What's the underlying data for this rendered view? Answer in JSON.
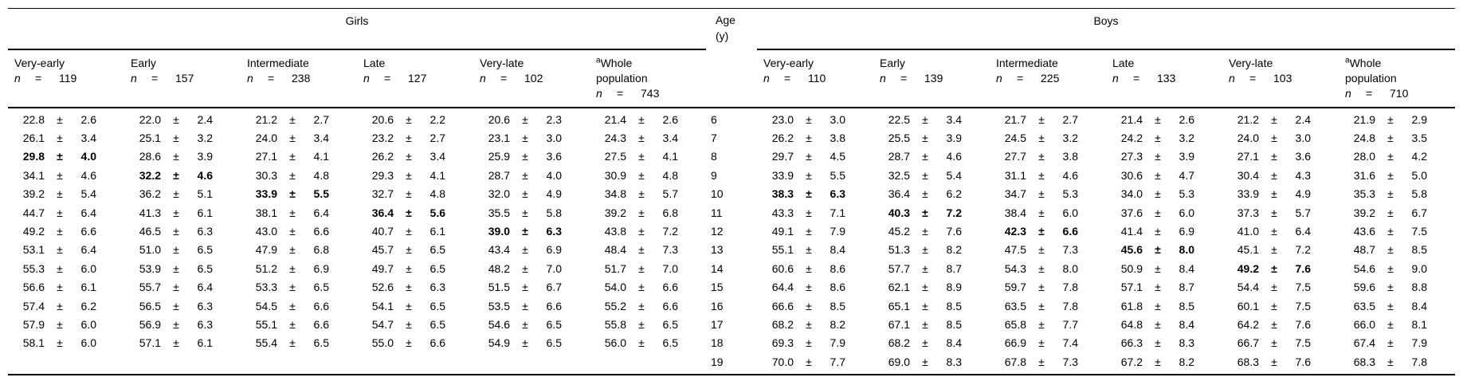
{
  "table": {
    "header": {
      "girls": "Girls",
      "age_line1": "Age",
      "age_line2": "(y)",
      "boys": "Boys"
    },
    "n_symbol": "n",
    "eq_symbol": "=",
    "pm_symbol": "±",
    "girls_columns": [
      {
        "label": "Very-early",
        "label2": "",
        "sup": "",
        "n": "119"
      },
      {
        "label": "Early",
        "label2": "",
        "sup": "",
        "n": "157"
      },
      {
        "label": "Intermediate",
        "label2": "",
        "sup": "",
        "n": "238"
      },
      {
        "label": "Late",
        "label2": "",
        "sup": "",
        "n": "127"
      },
      {
        "label": "Very-late",
        "label2": "",
        "sup": "",
        "n": "102"
      },
      {
        "label": "Whole",
        "label2": "population",
        "sup": "a",
        "n": "743"
      }
    ],
    "boys_columns": [
      {
        "label": "Very-early",
        "label2": "",
        "sup": "",
        "n": "110"
      },
      {
        "label": "Early",
        "label2": "",
        "sup": "",
        "n": "139"
      },
      {
        "label": "Intermediate",
        "label2": "",
        "sup": "",
        "n": "225"
      },
      {
        "label": "Late",
        "label2": "",
        "sup": "",
        "n": "133"
      },
      {
        "label": "Very-late",
        "label2": "",
        "sup": "",
        "n": "103"
      },
      {
        "label": "Whole",
        "label2": "population",
        "sup": "a",
        "n": "710"
      }
    ],
    "rows": [
      {
        "age": "6",
        "girls": [
          [
            "22.8",
            "2.6",
            0
          ],
          [
            "22.0",
            "2.4",
            0
          ],
          [
            "21.2",
            "2.7",
            0
          ],
          [
            "20.6",
            "2.2",
            0
          ],
          [
            "20.6",
            "2.3",
            0
          ],
          [
            "21.4",
            "2.6",
            0
          ]
        ],
        "boys": [
          [
            "23.0",
            "3.0",
            0
          ],
          [
            "22.5",
            "3.4",
            0
          ],
          [
            "21.7",
            "2.7",
            0
          ],
          [
            "21.4",
            "2.6",
            0
          ],
          [
            "21.2",
            "2.4",
            0
          ],
          [
            "21.9",
            "2.9",
            0
          ]
        ]
      },
      {
        "age": "7",
        "girls": [
          [
            "26.1",
            "3.4",
            0
          ],
          [
            "25.1",
            "3.2",
            0
          ],
          [
            "24.0",
            "3.4",
            0
          ],
          [
            "23.2",
            "2.7",
            0
          ],
          [
            "23.1",
            "3.0",
            0
          ],
          [
            "24.3",
            "3.4",
            0
          ]
        ],
        "boys": [
          [
            "26.2",
            "3.8",
            0
          ],
          [
            "25.5",
            "3.9",
            0
          ],
          [
            "24.5",
            "3.2",
            0
          ],
          [
            "24.2",
            "3.2",
            0
          ],
          [
            "24.0",
            "3.0",
            0
          ],
          [
            "24.8",
            "3.5",
            0
          ]
        ]
      },
      {
        "age": "8",
        "girls": [
          [
            "29.8",
            "4.0",
            1
          ],
          [
            "28.6",
            "3.9",
            0
          ],
          [
            "27.1",
            "4.1",
            0
          ],
          [
            "26.2",
            "3.4",
            0
          ],
          [
            "25.9",
            "3.6",
            0
          ],
          [
            "27.5",
            "4.1",
            0
          ]
        ],
        "boys": [
          [
            "29.7",
            "4.5",
            0
          ],
          [
            "28.7",
            "4.6",
            0
          ],
          [
            "27.7",
            "3.8",
            0
          ],
          [
            "27.3",
            "3.9",
            0
          ],
          [
            "27.1",
            "3.6",
            0
          ],
          [
            "28.0",
            "4.2",
            0
          ]
        ]
      },
      {
        "age": "9",
        "girls": [
          [
            "34.1",
            "4.6",
            0
          ],
          [
            "32.2",
            "4.6",
            1
          ],
          [
            "30.3",
            "4.8",
            0
          ],
          [
            "29.3",
            "4.1",
            0
          ],
          [
            "28.7",
            "4.0",
            0
          ],
          [
            "30.9",
            "4.8",
            0
          ]
        ],
        "boys": [
          [
            "33.9",
            "5.5",
            0
          ],
          [
            "32.5",
            "5.4",
            0
          ],
          [
            "31.1",
            "4.6",
            0
          ],
          [
            "30.6",
            "4.7",
            0
          ],
          [
            "30.4",
            "4.3",
            0
          ],
          [
            "31.6",
            "5.0",
            0
          ]
        ]
      },
      {
        "age": "10",
        "girls": [
          [
            "39.2",
            "5.4",
            0
          ],
          [
            "36.2",
            "5.1",
            0
          ],
          [
            "33.9",
            "5.5",
            1
          ],
          [
            "32.7",
            "4.8",
            0
          ],
          [
            "32.0",
            "4.9",
            0
          ],
          [
            "34.8",
            "5.7",
            0
          ]
        ],
        "boys": [
          [
            "38.3",
            "6.3",
            1
          ],
          [
            "36.4",
            "6.2",
            0
          ],
          [
            "34.7",
            "5.3",
            0
          ],
          [
            "34.0",
            "5.3",
            0
          ],
          [
            "33.9",
            "4.9",
            0
          ],
          [
            "35.3",
            "5.8",
            0
          ]
        ]
      },
      {
        "age": "11",
        "girls": [
          [
            "44.7",
            "6.4",
            0
          ],
          [
            "41.3",
            "6.1",
            0
          ],
          [
            "38.1",
            "6.4",
            0
          ],
          [
            "36.4",
            "5.6",
            1
          ],
          [
            "35.5",
            "5.8",
            0
          ],
          [
            "39.2",
            "6.8",
            0
          ]
        ],
        "boys": [
          [
            "43.3",
            "7.1",
            0
          ],
          [
            "40.3",
            "7.2",
            1
          ],
          [
            "38.4",
            "6.0",
            0
          ],
          [
            "37.6",
            "6.0",
            0
          ],
          [
            "37.3",
            "5.7",
            0
          ],
          [
            "39.2",
            "6.7",
            0
          ]
        ]
      },
      {
        "age": "12",
        "girls": [
          [
            "49.2",
            "6.6",
            0
          ],
          [
            "46.5",
            "6.3",
            0
          ],
          [
            "43.0",
            "6.6",
            0
          ],
          [
            "40.7",
            "6.1",
            0
          ],
          [
            "39.0",
            "6.3",
            1
          ],
          [
            "43.8",
            "7.2",
            0
          ]
        ],
        "boys": [
          [
            "49.1",
            "7.9",
            0
          ],
          [
            "45.2",
            "7.6",
            0
          ],
          [
            "42.3",
            "6.6",
            1
          ],
          [
            "41.4",
            "6.9",
            0
          ],
          [
            "41.0",
            "6.4",
            0
          ],
          [
            "43.6",
            "7.5",
            0
          ]
        ]
      },
      {
        "age": "13",
        "girls": [
          [
            "53.1",
            "6.4",
            0
          ],
          [
            "51.0",
            "6.5",
            0
          ],
          [
            "47.9",
            "6.8",
            0
          ],
          [
            "45.7",
            "6.5",
            0
          ],
          [
            "43.4",
            "6.9",
            0
          ],
          [
            "48.4",
            "7.3",
            0
          ]
        ],
        "boys": [
          [
            "55.1",
            "8.4",
            0
          ],
          [
            "51.3",
            "8.2",
            0
          ],
          [
            "47.5",
            "7.3",
            0
          ],
          [
            "45.6",
            "8.0",
            1
          ],
          [
            "45.1",
            "7.2",
            0
          ],
          [
            "48.7",
            "8.5",
            0
          ]
        ]
      },
      {
        "age": "14",
        "girls": [
          [
            "55.3",
            "6.0",
            0
          ],
          [
            "53.9",
            "6.5",
            0
          ],
          [
            "51.2",
            "6.9",
            0
          ],
          [
            "49.7",
            "6.5",
            0
          ],
          [
            "48.2",
            "7.0",
            0
          ],
          [
            "51.7",
            "7.0",
            0
          ]
        ],
        "boys": [
          [
            "60.6",
            "8.6",
            0
          ],
          [
            "57.7",
            "8.7",
            0
          ],
          [
            "54.3",
            "8.0",
            0
          ],
          [
            "50.9",
            "8.4",
            0
          ],
          [
            "49.2",
            "7.6",
            1
          ],
          [
            "54.6",
            "9.0",
            0
          ]
        ]
      },
      {
        "age": "15",
        "girls": [
          [
            "56.6",
            "6.1",
            0
          ],
          [
            "55.7",
            "6.4",
            0
          ],
          [
            "53.3",
            "6.5",
            0
          ],
          [
            "52.6",
            "6.3",
            0
          ],
          [
            "51.5",
            "6.7",
            0
          ],
          [
            "54.0",
            "6.6",
            0
          ]
        ],
        "boys": [
          [
            "64.4",
            "8.6",
            0
          ],
          [
            "62.1",
            "8.9",
            0
          ],
          [
            "59.7",
            "7.8",
            0
          ],
          [
            "57.1",
            "8.7",
            0
          ],
          [
            "54.4",
            "7.5",
            0
          ],
          [
            "59.6",
            "8.8",
            0
          ]
        ]
      },
      {
        "age": "16",
        "girls": [
          [
            "57.4",
            "6.2",
            0
          ],
          [
            "56.5",
            "6.3",
            0
          ],
          [
            "54.5",
            "6.6",
            0
          ],
          [
            "54.1",
            "6.5",
            0
          ],
          [
            "53.5",
            "6.6",
            0
          ],
          [
            "55.2",
            "6.6",
            0
          ]
        ],
        "boys": [
          [
            "66.6",
            "8.5",
            0
          ],
          [
            "65.1",
            "8.5",
            0
          ],
          [
            "63.5",
            "7.8",
            0
          ],
          [
            "61.8",
            "8.5",
            0
          ],
          [
            "60.1",
            "7.5",
            0
          ],
          [
            "63.5",
            "8.4",
            0
          ]
        ]
      },
      {
        "age": "17",
        "girls": [
          [
            "57.9",
            "6.0",
            0
          ],
          [
            "56.9",
            "6.3",
            0
          ],
          [
            "55.1",
            "6.6",
            0
          ],
          [
            "54.7",
            "6.5",
            0
          ],
          [
            "54.6",
            "6.5",
            0
          ],
          [
            "55.8",
            "6.5",
            0
          ]
        ],
        "boys": [
          [
            "68.2",
            "8.2",
            0
          ],
          [
            "67.1",
            "8.5",
            0
          ],
          [
            "65.8",
            "7.7",
            0
          ],
          [
            "64.8",
            "8.4",
            0
          ],
          [
            "64.2",
            "7.6",
            0
          ],
          [
            "66.0",
            "8.1",
            0
          ]
        ]
      },
      {
        "age": "18",
        "girls": [
          [
            "58.1",
            "6.0",
            0
          ],
          [
            "57.1",
            "6.1",
            0
          ],
          [
            "55.4",
            "6.5",
            0
          ],
          [
            "55.0",
            "6.6",
            0
          ],
          [
            "54.9",
            "6.5",
            0
          ],
          [
            "56.0",
            "6.5",
            0
          ]
        ],
        "boys": [
          [
            "69.3",
            "7.9",
            0
          ],
          [
            "68.2",
            "8.4",
            0
          ],
          [
            "66.9",
            "7.4",
            0
          ],
          [
            "66.3",
            "8.3",
            0
          ],
          [
            "66.7",
            "7.5",
            0
          ],
          [
            "67.4",
            "7.9",
            0
          ]
        ]
      },
      {
        "age": "19",
        "girls": [
          null,
          null,
          null,
          null,
          null,
          null
        ],
        "boys": [
          [
            "70.0",
            "7.7",
            0
          ],
          [
            "69.0",
            "8.3",
            0
          ],
          [
            "67.8",
            "7.3",
            0
          ],
          [
            "67.2",
            "8.2",
            0
          ],
          [
            "68.3",
            "7.6",
            0
          ],
          [
            "68.3",
            "7.8",
            0
          ]
        ]
      }
    ]
  }
}
